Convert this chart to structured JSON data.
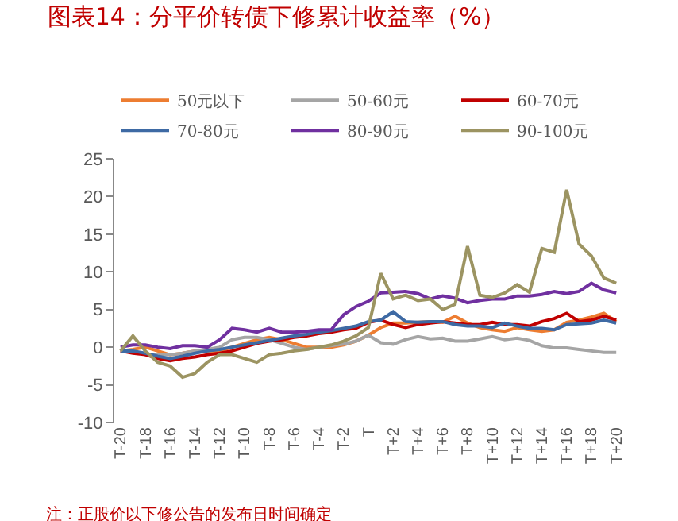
{
  "chart_data": {
    "type": "line",
    "title": "图表14：分平价转债下修累计收益率（%）",
    "categories": [
      "T-20",
      null,
      "T-18",
      null,
      "T-16",
      null,
      "T-14",
      null,
      "T-12",
      null,
      "T-10",
      null,
      "T-8",
      null,
      "T-6",
      null,
      "T-4",
      null,
      "T-2",
      null,
      "T",
      null,
      "T+2",
      null,
      "T+4",
      null,
      "T+6",
      null,
      "T+8",
      null,
      "T+10",
      null,
      "T+12",
      null,
      "T+14",
      null,
      "T+16",
      null,
      "T+18",
      null,
      "T+20"
    ],
    "series": [
      {
        "name": "50元以下",
        "color": "#ed7d31",
        "values": [
          -0.5,
          -0.3,
          0,
          -0.5,
          -1,
          -0.8,
          -0.5,
          -0.5,
          -0.5,
          0,
          0.5,
          1,
          1.3,
          1,
          0.5,
          0,
          0,
          0,
          0.3,
          0.8,
          1.6,
          2.6,
          3.2,
          3.2,
          3.3,
          3.4,
          3.3,
          4.1,
          3.2,
          2.6,
          2.3,
          2.1,
          2.6,
          2.3,
          2.1,
          2.3,
          3.3,
          3.6,
          4,
          4.5,
          3.4
        ]
      },
      {
        "name": "50-60元",
        "color": "#a5a5a5",
        "values": [
          -0.5,
          -0.5,
          -1,
          -1,
          -1,
          -0.8,
          -0.5,
          -0.3,
          0,
          1,
          1.3,
          1.3,
          1,
          0.5,
          0,
          -0.3,
          0,
          0.2,
          0.4,
          0.8,
          1.6,
          0.6,
          0.4,
          1,
          1.4,
          1.1,
          1.2,
          0.8,
          0.8,
          1.1,
          1.4,
          1,
          1.2,
          0.9,
          0.2,
          -0.1,
          -0.1,
          -0.3,
          -0.5,
          -0.7,
          -0.7
        ]
      },
      {
        "name": "60-70元",
        "color": "#c00000",
        "values": [
          -0.5,
          -0.8,
          -1,
          -1.5,
          -1.8,
          -1.5,
          -1.3,
          -1,
          -0.8,
          -0.5,
          0,
          0.5,
          0.8,
          1,
          1.3,
          1.5,
          1.8,
          2,
          2.3,
          2.5,
          3.3,
          3.6,
          3,
          2.6,
          3,
          3.2,
          3.4,
          3.2,
          3,
          3,
          3.3,
          3,
          3,
          2.8,
          3.4,
          3.8,
          4.5,
          3.4,
          3.6,
          4.1,
          3.6
        ]
      },
      {
        "name": "70-80元",
        "color": "#3e6aa4",
        "values": [
          -0.5,
          -0.5,
          -0.8,
          -1.2,
          -1.5,
          -1.2,
          -0.8,
          -0.5,
          -0.3,
          0,
          0.3,
          0.6,
          0.9,
          1.2,
          1.5,
          1.7,
          2,
          2.2,
          2.5,
          2.8,
          3.4,
          3.6,
          4.7,
          3.4,
          3.3,
          3.4,
          3.4,
          3,
          2.8,
          2.8,
          2.6,
          3.2,
          2.8,
          2.5,
          2.5,
          2.3,
          3,
          3.1,
          3.2,
          3.6,
          3.2
        ]
      },
      {
        "name": "80-90元",
        "color": "#7030a0",
        "values": [
          0,
          0.3,
          0.3,
          0,
          -0.2,
          0.2,
          0.2,
          0,
          1,
          2.5,
          2.3,
          2,
          2.5,
          2,
          2,
          2.1,
          2.3,
          2.3,
          4.3,
          5.4,
          6.1,
          7.2,
          7.3,
          7.4,
          7.1,
          6.4,
          6.8,
          6.5,
          5.9,
          6.2,
          6.4,
          6.4,
          6.8,
          6.8,
          7,
          7.4,
          7.1,
          7.4,
          8.5,
          7.6,
          7.2
        ]
      },
      {
        "name": "90-100元",
        "color": "#9c9462",
        "values": [
          -0.5,
          1.5,
          -0.5,
          -2,
          -2.5,
          -4,
          -3.5,
          -2,
          -1,
          -1,
          -1.5,
          -2,
          -1,
          -0.8,
          -0.5,
          -0.3,
          0,
          0.3,
          0.8,
          1.5,
          2.6,
          9.8,
          6.4,
          6.9,
          6.2,
          6.4,
          5,
          5.7,
          13.4,
          6.9,
          6.6,
          7.2,
          8.3,
          7.3,
          13.1,
          12.6,
          20.9,
          13.7,
          12.1,
          9.2,
          8.5
        ]
      }
    ],
    "ylim": [
      -10,
      25
    ],
    "yticks": [
      -10,
      -5,
      0,
      5,
      10,
      15,
      20,
      25
    ],
    "grid": false,
    "legend": "top",
    "line_style": "solid",
    "marker": "none",
    "annotations": [
      "注：正股价以下修公告的发布日时间确定"
    ]
  }
}
